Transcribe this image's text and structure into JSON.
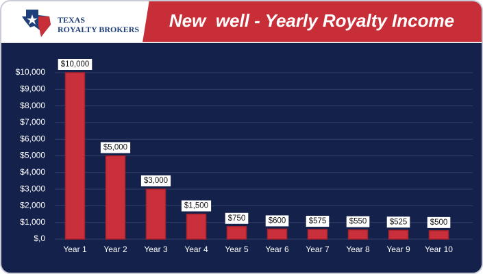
{
  "logo": {
    "line1": "TEXAS",
    "line2": "ROYALTY BROKERS"
  },
  "chart_data": {
    "type": "bar",
    "title": "New  well - Yearly Royalty Income",
    "categories": [
      "Year 1",
      "Year 2",
      "Year 3",
      "Year 4",
      "Year 5",
      "Year 6",
      "Year 7",
      "Year 8",
      "Year 9",
      "Year 10"
    ],
    "values": [
      10000,
      5000,
      3000,
      1500,
      750,
      600,
      575,
      550,
      525,
      500
    ],
    "value_labels": [
      "$10,000",
      "$5,000",
      "$3,000",
      "$1,500",
      "$750",
      "$600",
      "$575",
      "$550",
      "$525",
      "$500"
    ],
    "color": "#c9303b",
    "ylim": [
      0,
      10000
    ],
    "yticks": [
      {
        "value": 0,
        "label": "$,0"
      },
      {
        "value": 1000,
        "label": "$1,000"
      },
      {
        "value": 2000,
        "label": "$2,000"
      },
      {
        "value": 3000,
        "label": "$3,000"
      },
      {
        "value": 4000,
        "label": "$4,000"
      },
      {
        "value": 5000,
        "label": "$5,000"
      },
      {
        "value": 6000,
        "label": "$6,000"
      },
      {
        "value": 7000,
        "label": "$7,000"
      },
      {
        "value": 8000,
        "label": "$8,000"
      },
      {
        "value": 9000,
        "label": "$9,000"
      },
      {
        "value": 10000,
        "label": "$10,000"
      }
    ],
    "grid": true
  }
}
